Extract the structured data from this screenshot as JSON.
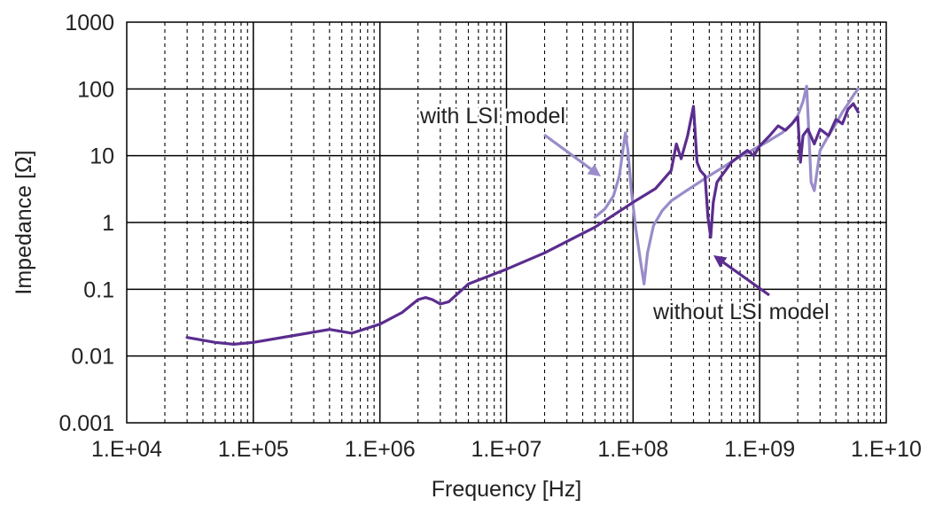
{
  "chart_data": {
    "type": "line",
    "title": "",
    "xlabel": "Frequency [Hz]",
    "ylabel": "Impedance [Ω]",
    "xscale": "log",
    "yscale": "log",
    "xlim": [
      10000,
      10000000000
    ],
    "ylim": [
      0.001,
      1000
    ],
    "grid": {
      "major": "solid",
      "minor": "dashed"
    },
    "x_tick_labels": [
      "1.E+04",
      "1.E+05",
      "1.E+06",
      "1.E+07",
      "1.E+08",
      "1.E+09",
      "1.E+10"
    ],
    "y_tick_labels": [
      "0.001",
      "0.01",
      "0.1",
      "1",
      "10",
      "100",
      "1000"
    ],
    "series": [
      {
        "color": "#9a8cc9",
        "x": [
          50000000,
          60000000,
          70000000,
          78000000,
          83000000,
          87000000,
          91000000,
          97000000,
          105000000,
          115000000,
          122000000,
          130000000,
          145000000,
          170000000,
          200000000,
          250000000,
          320000000,
          400000000,
          500000000,
          650000000,
          800000000,
          1000000000,
          1200000000,
          1500000000,
          1800000000,
          2000000000,
          2200000000,
          2350000000,
          2450000000,
          2550000000,
          2700000000,
          3000000000,
          3500000000,
          4000000000,
          4500000000,
          5000000000,
          5500000000,
          6000000000
        ],
        "y": [
          1.2,
          1.6,
          2.5,
          5,
          12,
          22,
          12,
          3,
          0.8,
          0.25,
          0.12,
          0.35,
          0.9,
          1.5,
          2.1,
          2.8,
          3.8,
          5,
          6.5,
          9,
          11,
          14,
          17,
          22,
          30,
          40,
          65,
          110,
          20,
          4,
          3,
          12,
          20,
          30,
          45,
          60,
          80,
          100
        ]
      },
      {
        "color": "#5b2d8e",
        "x": [
          30000,
          50000,
          70000,
          100000,
          200000,
          400000,
          600000,
          1000000,
          1500000,
          2000000,
          2300000,
          2600000,
          3000000,
          3500000,
          5000000,
          10000000,
          20000000,
          50000000,
          100000000,
          150000000,
          200000000,
          220000000,
          240000000,
          270000000,
          300000000,
          320000000,
          340000000,
          370000000,
          390000000,
          410000000,
          430000000,
          460000000,
          500000000,
          600000000,
          700000000,
          800000000,
          900000000,
          1000000000,
          1200000000,
          1400000000,
          1600000000,
          1800000000,
          2000000000,
          2100000000,
          2200000000,
          2400000000,
          2700000000,
          3000000000,
          3500000000,
          4000000000,
          4500000000,
          5000000000,
          5500000000,
          6000000000
        ],
        "y": [
          0.019,
          0.016,
          0.015,
          0.016,
          0.02,
          0.025,
          0.022,
          0.03,
          0.045,
          0.07,
          0.075,
          0.07,
          0.06,
          0.065,
          0.12,
          0.2,
          0.35,
          0.85,
          2,
          3.2,
          6,
          15,
          9,
          20,
          55,
          8,
          6,
          5,
          1.2,
          0.6,
          2,
          4,
          5,
          8,
          10,
          12,
          10,
          14,
          20,
          28,
          24,
          30,
          38,
          8,
          20,
          25,
          15,
          25,
          20,
          35,
          30,
          50,
          60,
          45
        ]
      }
    ],
    "annotations": [
      {
        "text": "with LSI model"
      },
      {
        "text": "without LSI model"
      }
    ]
  }
}
